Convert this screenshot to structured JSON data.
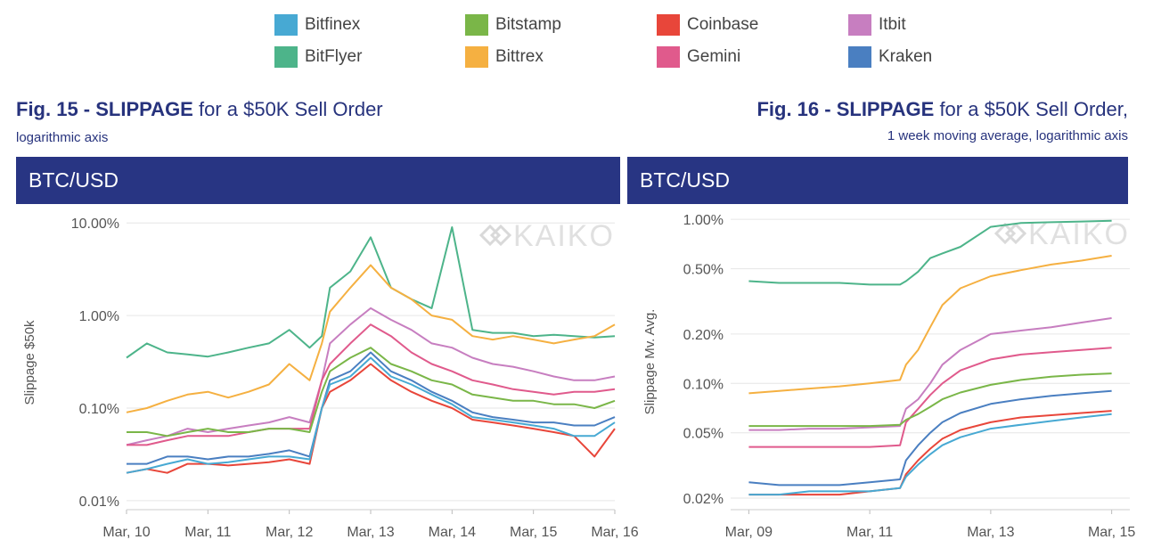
{
  "legend": {
    "items": [
      {
        "label": "Bitfinex",
        "color": "#47a9d3"
      },
      {
        "label": "BitFlyer",
        "color": "#4db48a"
      },
      {
        "label": "Bitstamp",
        "color": "#7ab648"
      },
      {
        "label": "Bittrex",
        "color": "#f5b041"
      },
      {
        "label": "Coinbase",
        "color": "#e8463a"
      },
      {
        "label": "Gemini",
        "color": "#e05a8c"
      },
      {
        "label": "Itbit",
        "color": "#c77ec0"
      },
      {
        "label": "Kraken",
        "color": "#4a7fc1"
      }
    ]
  },
  "fig15": {
    "title_bold": "Fig. 15 - SLIPPAGE",
    "title_rest": " for a $50K Sell Order",
    "subtitle": "logarithmic axis",
    "banner": "BTC/USD",
    "watermark": "KAIKO"
  },
  "fig16": {
    "title_bold": "Fig. 16 - SLIPPAGE",
    "title_rest": " for a $50K Sell Order,",
    "subtitle": "1 week moving average, logarithmic axis",
    "banner": "BTC/USD",
    "watermark": "KAIKO"
  },
  "chart_data": [
    {
      "type": "line",
      "title": "Fig. 15 - SLIPPAGE for a $50K Sell Order",
      "ylabel": "Slippage $50k",
      "yscale": "log",
      "ylim": [
        0.008,
        12
      ],
      "yticks": [
        0.01,
        0.1,
        1,
        10
      ],
      "yticklabels": [
        "0.01%",
        "0.10%",
        "1.00%",
        "10.00%"
      ],
      "xlim": [
        0,
        6
      ],
      "xticks": [
        0,
        1,
        2,
        3,
        4,
        5,
        6
      ],
      "xticklabels": [
        "Mar, 10",
        "Mar, 11",
        "Mar, 12",
        "Mar, 13",
        "Mar, 14",
        "Mar, 15",
        "Mar, 16"
      ],
      "x": [
        0,
        0.25,
        0.5,
        0.75,
        1,
        1.25,
        1.5,
        1.75,
        2,
        2.25,
        2.4,
        2.5,
        2.75,
        3,
        3.25,
        3.5,
        3.75,
        4,
        4.25,
        4.5,
        4.75,
        5,
        5.25,
        5.5,
        5.75,
        6
      ],
      "series": [
        {
          "name": "BitFlyer",
          "color": "#4db48a",
          "values": [
            0.35,
            0.5,
            0.4,
            0.38,
            0.36,
            0.4,
            0.45,
            0.5,
            0.7,
            0.45,
            0.6,
            2.0,
            3.0,
            7.0,
            2.0,
            1.5,
            1.2,
            9.0,
            0.7,
            0.65,
            0.65,
            0.6,
            0.62,
            0.6,
            0.58,
            0.6
          ]
        },
        {
          "name": "Bittrex",
          "color": "#f5b041",
          "values": [
            0.09,
            0.1,
            0.12,
            0.14,
            0.15,
            0.13,
            0.15,
            0.18,
            0.3,
            0.2,
            0.5,
            1.1,
            2.0,
            3.5,
            2.0,
            1.5,
            1.0,
            0.9,
            0.6,
            0.55,
            0.6,
            0.55,
            0.5,
            0.55,
            0.6,
            0.8
          ]
        },
        {
          "name": "Itbit",
          "color": "#c77ec0",
          "values": [
            0.04,
            0.045,
            0.05,
            0.06,
            0.055,
            0.06,
            0.065,
            0.07,
            0.08,
            0.07,
            0.2,
            0.5,
            0.8,
            1.2,
            0.9,
            0.7,
            0.5,
            0.45,
            0.35,
            0.3,
            0.28,
            0.25,
            0.22,
            0.2,
            0.2,
            0.22
          ]
        },
        {
          "name": "Gemini",
          "color": "#e05a8c",
          "values": [
            0.04,
            0.04,
            0.045,
            0.05,
            0.05,
            0.05,
            0.055,
            0.06,
            0.06,
            0.06,
            0.2,
            0.3,
            0.5,
            0.8,
            0.6,
            0.4,
            0.3,
            0.25,
            0.2,
            0.18,
            0.16,
            0.15,
            0.14,
            0.15,
            0.15,
            0.16
          ]
        },
        {
          "name": "Bitstamp",
          "color": "#7ab648",
          "values": [
            0.055,
            0.055,
            0.05,
            0.055,
            0.06,
            0.055,
            0.055,
            0.06,
            0.06,
            0.055,
            0.15,
            0.25,
            0.35,
            0.45,
            0.3,
            0.25,
            0.2,
            0.18,
            0.14,
            0.13,
            0.12,
            0.12,
            0.11,
            0.11,
            0.1,
            0.12
          ]
        },
        {
          "name": "Kraken",
          "color": "#4a7fc1",
          "values": [
            0.025,
            0.025,
            0.03,
            0.03,
            0.028,
            0.03,
            0.03,
            0.032,
            0.035,
            0.03,
            0.1,
            0.2,
            0.25,
            0.4,
            0.25,
            0.2,
            0.15,
            0.12,
            0.09,
            0.08,
            0.075,
            0.07,
            0.07,
            0.065,
            0.065,
            0.08
          ]
        },
        {
          "name": "Coinbase",
          "color": "#e8463a",
          "values": [
            0.02,
            0.022,
            0.02,
            0.025,
            0.025,
            0.024,
            0.025,
            0.026,
            0.028,
            0.025,
            0.1,
            0.15,
            0.2,
            0.3,
            0.2,
            0.15,
            0.12,
            0.1,
            0.075,
            0.07,
            0.065,
            0.06,
            0.055,
            0.05,
            0.03,
            0.06
          ]
        },
        {
          "name": "Bitfinex",
          "color": "#47a9d3",
          "values": [
            0.02,
            0.022,
            0.025,
            0.028,
            0.025,
            0.026,
            0.028,
            0.03,
            0.03,
            0.028,
            0.1,
            0.18,
            0.22,
            0.35,
            0.22,
            0.18,
            0.14,
            0.11,
            0.08,
            0.075,
            0.07,
            0.065,
            0.06,
            0.05,
            0.05,
            0.07
          ]
        }
      ]
    },
    {
      "type": "line",
      "title": "Fig. 16 - SLIPPAGE for a $50K Sell Order, 1 week moving average, logarithmic axis",
      "ylabel": "Slippage Mv. Avg.",
      "yscale": "log",
      "ylim": [
        0.017,
        1.08
      ],
      "yticks": [
        0.02,
        0.05,
        0.1,
        0.2,
        0.5,
        1
      ],
      "yticklabels": [
        "0.02%",
        "0.05%",
        "0.10%",
        "0.20%",
        "0.50%",
        "1.00%"
      ],
      "xlim": [
        -0.3,
        6.3
      ],
      "xticks": [
        0,
        2,
        4,
        6
      ],
      "xticklabels": [
        "Mar, 09",
        "Mar, 11",
        "Mar, 13",
        "Mar, 15"
      ],
      "x": [
        0,
        0.5,
        1,
        1.5,
        2,
        2.5,
        2.6,
        2.8,
        3.0,
        3.2,
        3.5,
        4.0,
        4.5,
        5.0,
        5.5,
        6.0
      ],
      "series": [
        {
          "name": "BitFlyer",
          "color": "#4db48a",
          "values": [
            0.42,
            0.41,
            0.41,
            0.41,
            0.4,
            0.4,
            0.42,
            0.48,
            0.58,
            0.62,
            0.68,
            0.9,
            0.95,
            0.96,
            0.97,
            0.98
          ]
        },
        {
          "name": "Bittrex",
          "color": "#f5b041",
          "values": [
            0.087,
            0.09,
            0.093,
            0.096,
            0.1,
            0.105,
            0.13,
            0.16,
            0.22,
            0.3,
            0.38,
            0.45,
            0.49,
            0.53,
            0.56,
            0.6
          ]
        },
        {
          "name": "Itbit",
          "color": "#c77ec0",
          "values": [
            0.052,
            0.052,
            0.053,
            0.053,
            0.054,
            0.055,
            0.07,
            0.08,
            0.1,
            0.13,
            0.16,
            0.2,
            0.21,
            0.22,
            0.235,
            0.25
          ]
        },
        {
          "name": "Gemini",
          "color": "#e05a8c",
          "values": [
            0.041,
            0.041,
            0.041,
            0.041,
            0.041,
            0.042,
            0.058,
            0.07,
            0.085,
            0.1,
            0.12,
            0.14,
            0.15,
            0.155,
            0.16,
            0.165
          ]
        },
        {
          "name": "Bitstamp",
          "color": "#7ab648",
          "values": [
            0.055,
            0.055,
            0.055,
            0.055,
            0.055,
            0.056,
            0.06,
            0.065,
            0.072,
            0.08,
            0.088,
            0.098,
            0.105,
            0.11,
            0.113,
            0.115
          ]
        },
        {
          "name": "Kraken",
          "color": "#4a7fc1",
          "values": [
            0.025,
            0.024,
            0.024,
            0.024,
            0.025,
            0.026,
            0.034,
            0.042,
            0.05,
            0.058,
            0.066,
            0.075,
            0.08,
            0.084,
            0.087,
            0.09
          ]
        },
        {
          "name": "Coinbase",
          "color": "#e8463a",
          "values": [
            0.021,
            0.021,
            0.021,
            0.021,
            0.022,
            0.023,
            0.028,
            0.034,
            0.04,
            0.046,
            0.052,
            0.058,
            0.062,
            0.064,
            0.066,
            0.068
          ]
        },
        {
          "name": "Bitfinex",
          "color": "#47a9d3",
          "values": [
            0.021,
            0.021,
            0.022,
            0.022,
            0.022,
            0.023,
            0.027,
            0.032,
            0.037,
            0.042,
            0.047,
            0.053,
            0.056,
            0.059,
            0.062,
            0.065
          ]
        }
      ]
    }
  ]
}
